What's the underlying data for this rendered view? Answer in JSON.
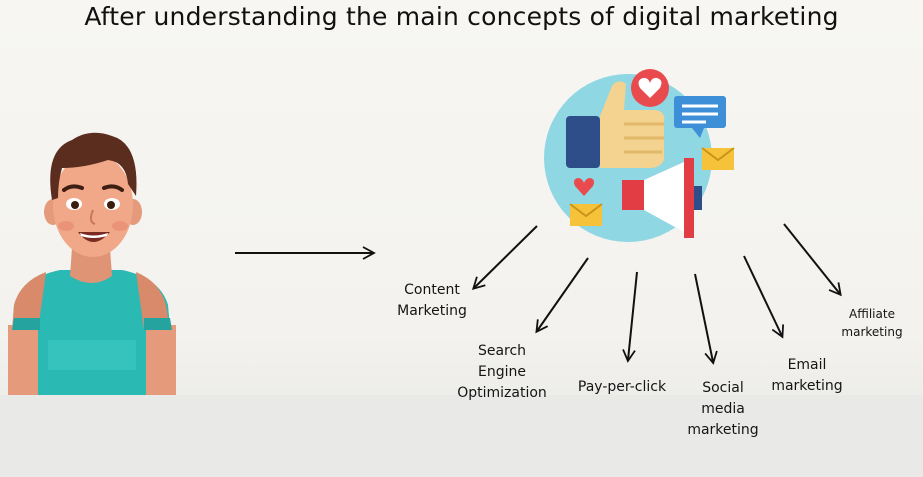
{
  "title": "After understanding the main concepts of digital marketing",
  "concepts": [
    "Content\nMarketing",
    "Search\nEngine\nOptimization",
    "Pay-per-click",
    "Social\nmedia\nmarketing",
    "Email\nmarketing",
    "Affiliate\nmarketing"
  ],
  "illustrations": {
    "person": "smiling-man-teal-shirt",
    "hub": "digital-marketing-icon-circle"
  }
}
